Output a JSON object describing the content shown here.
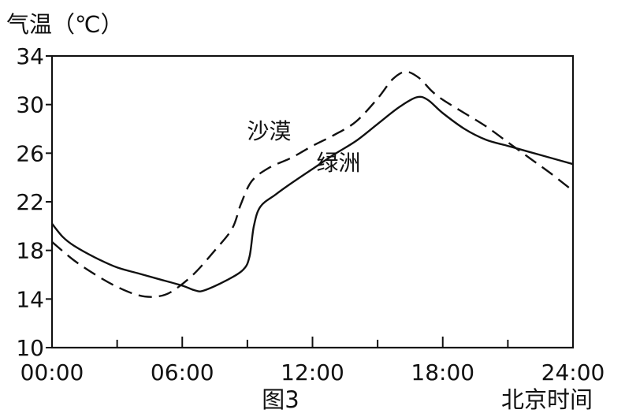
{
  "chart_data": {
    "type": "line",
    "title": "",
    "ylabel": "气温（℃）",
    "xlabel": "北京时间",
    "caption": "图3",
    "ylim": [
      10,
      34
    ],
    "xlim": [
      0,
      24
    ],
    "yticks": [
      10,
      14,
      18,
      22,
      26,
      30,
      34
    ],
    "xticks": [
      {
        "value": 0,
        "label": "00:00"
      },
      {
        "value": 6,
        "label": "06:00"
      },
      {
        "value": 12,
        "label": "12:00"
      },
      {
        "value": 18,
        "label": "18:00"
      },
      {
        "value": 24,
        "label": "24:00"
      }
    ],
    "minor_xticks": [
      3,
      9,
      15,
      21
    ],
    "grid": false,
    "series": [
      {
        "name": "沙漠",
        "style": "dashed",
        "color": "#111111",
        "points": [
          [
            0,
            18.7
          ],
          [
            1,
            17.2
          ],
          [
            2,
            16.0
          ],
          [
            3,
            15.0
          ],
          [
            4,
            14.3
          ],
          [
            4.8,
            14.2
          ],
          [
            5.5,
            14.6
          ],
          [
            6.5,
            16.0
          ],
          [
            7.5,
            18.0
          ],
          [
            8.3,
            19.8
          ],
          [
            8.7,
            21.8
          ],
          [
            9.2,
            23.7
          ],
          [
            10,
            24.8
          ],
          [
            11,
            25.6
          ],
          [
            12,
            26.6
          ],
          [
            13,
            27.5
          ],
          [
            14,
            28.6
          ],
          [
            15,
            30.5
          ],
          [
            15.7,
            32.1
          ],
          [
            16.3,
            32.7
          ],
          [
            16.9,
            32.2
          ],
          [
            17.5,
            31.1
          ],
          [
            18,
            30.4
          ],
          [
            19,
            29.3
          ],
          [
            20,
            28.2
          ],
          [
            21,
            26.9
          ],
          [
            22,
            25.6
          ],
          [
            23,
            24.3
          ],
          [
            24,
            22.9
          ]
        ]
      },
      {
        "name": "绿洲",
        "style": "solid",
        "color": "#111111",
        "points": [
          [
            0,
            20.2
          ],
          [
            0.5,
            19.1
          ],
          [
            1,
            18.4
          ],
          [
            2,
            17.4
          ],
          [
            3,
            16.6
          ],
          [
            4,
            16.1
          ],
          [
            5,
            15.6
          ],
          [
            6,
            15.1
          ],
          [
            6.6,
            14.7
          ],
          [
            7,
            14.7
          ],
          [
            8,
            15.5
          ],
          [
            8.8,
            16.4
          ],
          [
            9.1,
            17.5
          ],
          [
            9.3,
            20.0
          ],
          [
            9.6,
            21.6
          ],
          [
            10.3,
            22.6
          ],
          [
            11,
            23.5
          ],
          [
            12,
            24.7
          ],
          [
            13,
            25.9
          ],
          [
            14,
            27.0
          ],
          [
            15,
            28.4
          ],
          [
            16,
            29.8
          ],
          [
            16.8,
            30.6
          ],
          [
            17.3,
            30.4
          ],
          [
            18,
            29.3
          ],
          [
            19,
            28.0
          ],
          [
            20,
            27.1
          ],
          [
            21,
            26.6
          ],
          [
            22,
            26.1
          ],
          [
            23,
            25.6
          ],
          [
            24,
            25.1
          ]
        ]
      }
    ],
    "annotations": [
      {
        "text": "沙漠",
        "x": 10.0,
        "y": 27.2,
        "series": "沙漠"
      },
      {
        "text": "绿洲",
        "x": 13.2,
        "y": 24.6,
        "series": "绿洲"
      }
    ]
  }
}
